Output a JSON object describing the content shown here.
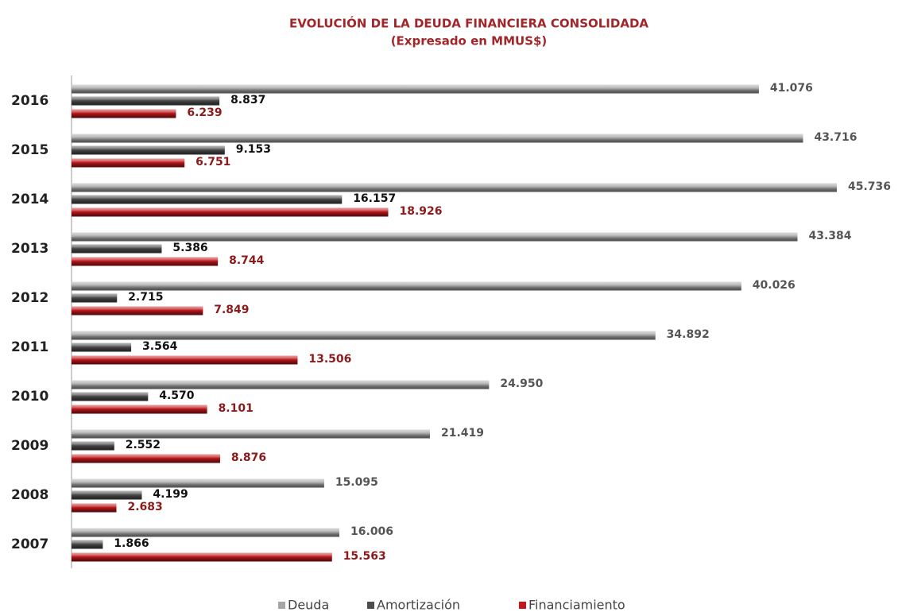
{
  "chart_data": {
    "type": "hbar",
    "title": "EVOLUCIÓN DE LA DEUDA FINANCIERA CONSOLIDADA",
    "subtitle": "(Expresado en MMUS$)",
    "categories": [
      "2016",
      "2015",
      "2014",
      "2013",
      "2012",
      "2011",
      "2010",
      "2009",
      "2008",
      "2007"
    ],
    "series": [
      {
        "name": "Deuda",
        "color": "#a6a6a6",
        "label_color": "#555555",
        "values": [
          41076,
          43716,
          45736,
          43384,
          40026,
          34892,
          24950,
          21419,
          15095,
          16006
        ],
        "value_labels": [
          "41.076",
          "43.716",
          "45.736",
          "43.384",
          "40.026",
          "34.892",
          "24.950",
          "21.419",
          "15.095",
          "16.006"
        ]
      },
      {
        "name": "Amortización",
        "color": "#4d4d4d",
        "label_color": "#111111",
        "values": [
          8837,
          9153,
          16157,
          5386,
          2715,
          3564,
          4570,
          2552,
          4199,
          1866
        ],
        "value_labels": [
          "8.837",
          "9.153",
          "16.157",
          "5.386",
          "2.715",
          "3.564",
          "4.570",
          "2.552",
          "4.199",
          "1.866"
        ]
      },
      {
        "name": "Financiamiento",
        "color": "#c0181c",
        "label_color": "#8b1a1a",
        "values": [
          6239,
          6751,
          18926,
          8744,
          7849,
          13506,
          8101,
          8876,
          2683,
          15563
        ],
        "value_labels": [
          "6.239",
          "6.751",
          "18.926",
          "8.744",
          "7.849",
          "13.506",
          "8.101",
          "8.876",
          "2.683",
          "15.563"
        ]
      }
    ],
    "legend": "bottom"
  }
}
